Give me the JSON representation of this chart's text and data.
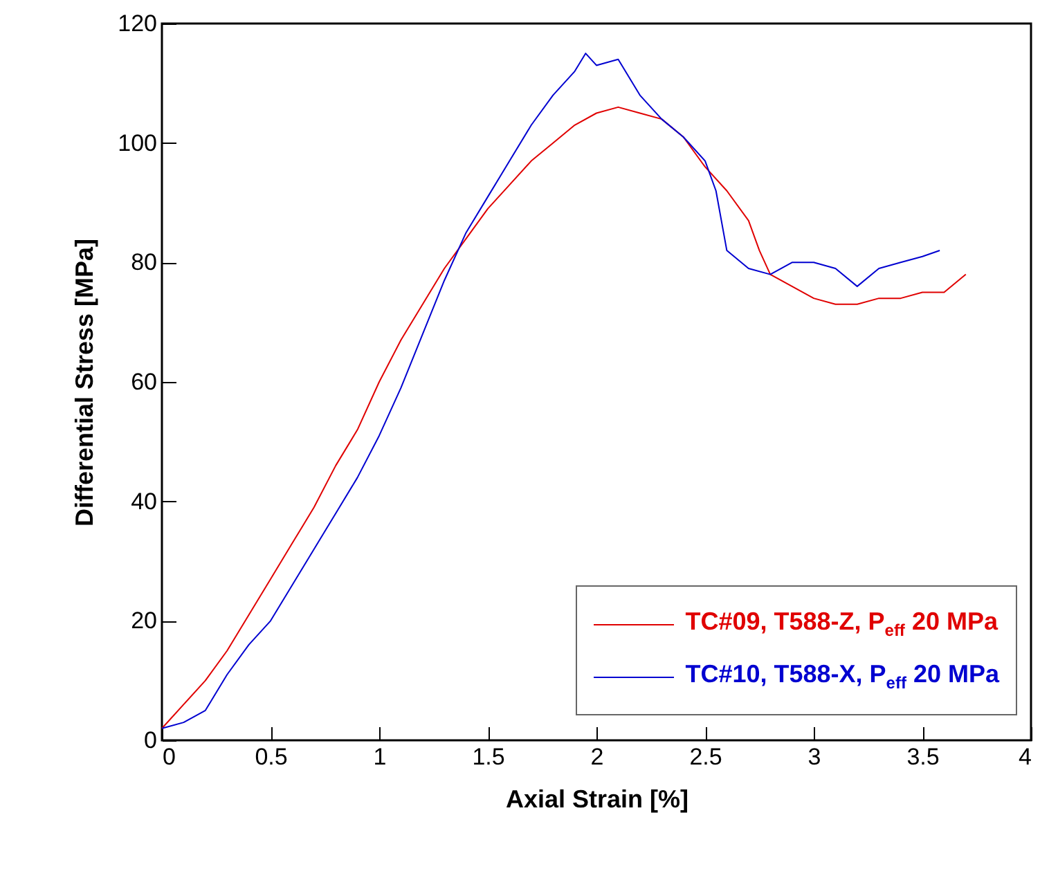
{
  "chart_data": {
    "type": "line",
    "xlabel": "Axial Strain [%]",
    "ylabel": "Differential Stress [MPa]",
    "xlim": [
      0,
      4
    ],
    "xticks": [
      0,
      0.5,
      1,
      1.5,
      2,
      2.5,
      3,
      3.5,
      4
    ],
    "ylim": [
      0,
      120
    ],
    "yticks": [
      0,
      20,
      40,
      60,
      80,
      100,
      120
    ],
    "legend": "bottom right",
    "series": [
      {
        "name": "TC#09, T588-Z, P$_{eff}$ 20 MPa",
        "color": "#e00000",
        "x": [
          0,
          0.1,
          0.2,
          0.3,
          0.4,
          0.5,
          0.6,
          0.7,
          0.8,
          0.9,
          1.0,
          1.1,
          1.2,
          1.3,
          1.4,
          1.5,
          1.6,
          1.7,
          1.8,
          1.9,
          2.0,
          2.1,
          2.2,
          2.3,
          2.4,
          2.5,
          2.6,
          2.7,
          2.75,
          2.8,
          2.9,
          3.0,
          3.1,
          3.2,
          3.3,
          3.4,
          3.5,
          3.6,
          3.7
        ],
        "values": [
          2,
          6,
          10,
          15,
          21,
          27,
          33,
          39,
          46,
          52,
          60,
          67,
          73,
          79,
          84,
          89,
          93,
          97,
          100,
          103,
          105,
          106,
          105,
          104,
          101,
          96,
          92,
          87,
          82,
          78,
          76,
          74,
          73,
          73,
          74,
          74,
          75,
          75,
          78
        ]
      },
      {
        "name": "TC#10, T588-X, P$_{eff}$ 20 MPa",
        "color": "#0000d0",
        "x": [
          0,
          0.1,
          0.2,
          0.3,
          0.4,
          0.5,
          0.6,
          0.7,
          0.8,
          0.9,
          1.0,
          1.1,
          1.2,
          1.3,
          1.4,
          1.5,
          1.6,
          1.7,
          1.8,
          1.9,
          1.95,
          2.0,
          2.1,
          2.2,
          2.3,
          2.4,
          2.5,
          2.55,
          2.6,
          2.7,
          2.8,
          2.9,
          3.0,
          3.1,
          3.2,
          3.3,
          3.4,
          3.5,
          3.58
        ],
        "values": [
          2,
          3,
          5,
          11,
          16,
          20,
          26,
          32,
          38,
          44,
          51,
          59,
          68,
          77,
          85,
          91,
          97,
          103,
          108,
          112,
          115,
          113,
          114,
          108,
          104,
          101,
          97,
          92,
          82,
          79,
          78,
          80,
          80,
          79,
          76,
          79,
          80,
          81,
          82
        ]
      }
    ]
  }
}
